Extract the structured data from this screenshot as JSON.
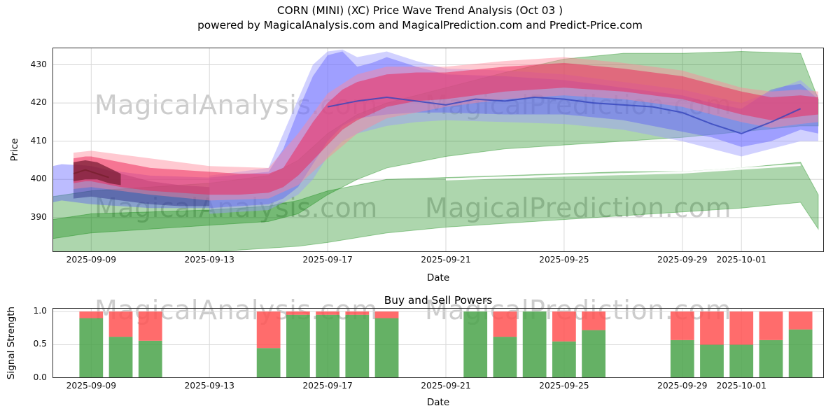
{
  "title": {
    "line1": "CORN (MINI) (XC) Price Wave Trend Analysis (Oct 03 )",
    "line2": "powered by MagicalAnalysis.com and MagicalPrediction.com and Predict-Price.com"
  },
  "watermarks": {
    "left": "MagicalAnalysis.com",
    "right": "MagicalPrediction.com"
  },
  "colors": {
    "grid": "#d8d8d8",
    "spine": "#2f2f2f",
    "band_green": "#008000",
    "band_blue_light": "#9999ff",
    "band_blue": "#5050ff",
    "band_navy": "#2a2a88",
    "band_pink": "#ff8899",
    "band_red": "#ee2255",
    "band_maroon": "#7a1f35",
    "bar_buy": "#4aa34a",
    "bar_sell": "#ff5252",
    "watermark": "#a3a3a3"
  },
  "chart_data": [
    {
      "type": "area",
      "name": "price-wave-trend",
      "ylabel": "Price",
      "xlabel": "Date",
      "x_epoch_day0": "2025-09-08",
      "xlim_days": [
        -0.31,
        25.79
      ],
      "ylim": [
        381,
        434.5
      ],
      "yticks": [
        {
          "v": 390,
          "label": "390"
        },
        {
          "v": 400,
          "label": "400"
        },
        {
          "v": 410,
          "label": "410"
        },
        {
          "v": 420,
          "label": "420"
        },
        {
          "v": 430,
          "label": "430"
        }
      ],
      "xticks": [
        {
          "day": 1,
          "label": "2025-09-09"
        },
        {
          "day": 5,
          "label": "2025-09-13"
        },
        {
          "day": 9,
          "label": "2025-09-17"
        },
        {
          "day": 13,
          "label": "2025-09-21"
        },
        {
          "day": 17,
          "label": "2025-09-25"
        },
        {
          "day": 21,
          "label": "2025-09-29"
        },
        {
          "day": 23,
          "label": "2025-10-01"
        }
      ],
      "bands": [
        {
          "name": "green-cone-lower",
          "color": "#008000",
          "opacity": 0.32,
          "stroke": true,
          "x": [
            -0.3,
            1,
            3,
            5,
            7,
            8,
            9,
            11,
            13,
            15,
            17,
            19,
            21,
            23,
            25,
            25.6
          ],
          "lower": [
            377,
            378,
            380,
            381,
            382,
            382.5,
            383.5,
            386,
            387.5,
            388.5,
            389.5,
            390.5,
            391.5,
            392.5,
            394,
            387
          ],
          "upper": [
            389.5,
            391,
            391.5,
            392,
            393,
            394.5,
            397,
            400,
            400.5,
            401,
            401.5,
            402,
            402,
            403,
            404.5,
            396
          ]
        },
        {
          "name": "green-cone-upper",
          "color": "#008000",
          "opacity": 0.32,
          "stroke": true,
          "x": [
            -0.3,
            1,
            3,
            5,
            7,
            8,
            9,
            10,
            11,
            13,
            15,
            17,
            19,
            21,
            23,
            25,
            25.6
          ],
          "lower": [
            384.5,
            386,
            387,
            388,
            389,
            391,
            396,
            400,
            403,
            406,
            408,
            409,
            410,
            411,
            412.5,
            414,
            414
          ],
          "upper": [
            395.5,
            397,
            398,
            399,
            401,
            405,
            412,
            417,
            420,
            424,
            428,
            431.5,
            433,
            433,
            433.5,
            433,
            421
          ]
        },
        {
          "name": "blue-outer",
          "color": "#9999ff",
          "opacity": 0.45,
          "stroke": false,
          "x": [
            5,
            7,
            8,
            8.5,
            9,
            9.5,
            10,
            11,
            12,
            13,
            15,
            17,
            19,
            21,
            23,
            25,
            25.6
          ],
          "lower": [
            391,
            392,
            396,
            400,
            406,
            410,
            412,
            414,
            415,
            415.5,
            415,
            414.5,
            413,
            410,
            406,
            410,
            410
          ],
          "upper": [
            401,
            403,
            421,
            430,
            433.5,
            434,
            432,
            433.5,
            431,
            429,
            428.5,
            427.5,
            425.5,
            423.5,
            420,
            426,
            422
          ]
        },
        {
          "name": "blue-inner",
          "color": "#5050ff",
          "opacity": 0.38,
          "stroke": false,
          "x": [
            -0.3,
            0,
            1,
            2,
            3,
            5,
            7,
            7.5,
            8,
            8.5,
            9,
            9.5,
            10,
            10.5,
            11,
            12,
            13,
            15,
            17,
            19,
            21,
            22,
            23,
            24,
            24.5,
            25,
            25.6
          ],
          "lower": [
            394,
            394.5,
            393.5,
            393,
            392.5,
            392.5,
            393.5,
            395,
            398,
            404,
            410,
            414,
            416,
            416.5,
            417,
            417.5,
            417.5,
            417,
            417,
            415.5,
            412.5,
            411,
            408.5,
            410,
            411.5,
            413,
            412
          ],
          "upper": [
            403.5,
            404,
            403.5,
            402,
            401,
            400.5,
            402,
            408,
            418,
            427,
            432.5,
            433.5,
            429.5,
            430.5,
            432,
            429.5,
            427.5,
            427,
            426,
            424,
            422,
            420,
            418.5,
            423.5,
            424.5,
            425,
            421
          ]
        },
        {
          "name": "navy-start",
          "color": "#2a2a88",
          "opacity": 0.45,
          "stroke": false,
          "x": [
            0.4,
            1,
            2,
            3,
            4,
            5
          ],
          "lower": [
            395,
            395.5,
            394.5,
            393.5,
            393,
            393
          ],
          "upper": [
            404,
            403.5,
            401.5,
            399.5,
            398.5,
            398
          ]
        },
        {
          "name": "pink-outer",
          "color": "#ff8899",
          "opacity": 0.45,
          "stroke": false,
          "x": [
            0.4,
            1,
            3,
            5,
            7,
            8,
            9,
            10,
            11,
            13,
            15,
            17,
            19,
            21,
            23,
            24,
            25,
            25.6
          ],
          "lower": [
            397.5,
            398,
            396,
            394.5,
            395,
            398.5,
            405.5,
            412,
            416,
            419,
            421,
            422,
            421,
            419,
            415,
            413.5,
            414.5,
            415
          ],
          "upper": [
            407,
            407.5,
            405.5,
            403.5,
            403,
            412,
            422.5,
            427.5,
            429.5,
            429.5,
            431,
            432,
            430.5,
            428.5,
            424,
            423,
            423.5,
            423
          ]
        },
        {
          "name": "red-inner",
          "color": "#ee2255",
          "opacity": 0.5,
          "stroke": false,
          "x": [
            0.4,
            0.8,
            1,
            2,
            3,
            5,
            6,
            7,
            7.5,
            8,
            8.5,
            9,
            9.5,
            10,
            11,
            12,
            13,
            15,
            17,
            19,
            21,
            23,
            24,
            25,
            25.6
          ],
          "lower": [
            399,
            399.5,
            399.5,
            398,
            397,
            396,
            396,
            396.5,
            398,
            401,
            405,
            409,
            413,
            415.5,
            419,
            420.5,
            421,
            423,
            424,
            423,
            421,
            417,
            415.5,
            416.5,
            417
          ],
          "upper": [
            405.5,
            406,
            406,
            404.5,
            403,
            402,
            401.5,
            401.5,
            403,
            409,
            415,
            420,
            423.5,
            425.5,
            427.5,
            428,
            428,
            429.5,
            430.5,
            429,
            427,
            423,
            421.5,
            422,
            421.5
          ]
        },
        {
          "name": "maroon-start",
          "color": "#7a1f35",
          "opacity": 0.75,
          "stroke": false,
          "x": [
            0.4,
            0.8,
            1.2,
            1.6,
            2
          ],
          "lower": [
            399.5,
            400,
            400,
            399,
            398.5
          ],
          "upper": [
            404.5,
            405,
            404.5,
            403,
            401.5
          ]
        }
      ],
      "lines": [
        {
          "name": "white-divider",
          "color": "#ffffff",
          "opacity": 0.95,
          "width": 3,
          "x": [
            13,
            17,
            21,
            25
          ],
          "y": [
            400,
            401,
            401.8,
            403.8
          ]
        },
        {
          "name": "dark-blue-trend",
          "color": "#3344bb",
          "opacity": 0.8,
          "width": 2,
          "x": [
            9,
            10,
            11,
            12,
            13,
            14,
            15,
            16,
            17,
            18,
            19,
            20,
            21,
            22,
            23,
            24,
            25
          ],
          "y": [
            419,
            420.5,
            421.5,
            420.5,
            419.5,
            421,
            420.5,
            421.5,
            421,
            420,
            419.5,
            419,
            417.5,
            414.5,
            412,
            415,
            418.5
          ]
        },
        {
          "name": "maroon-trace",
          "color": "#7a2030",
          "opacity": 0.9,
          "width": 2,
          "x": [
            0.4,
            0.8,
            1.2,
            1.6
          ],
          "y": [
            401.5,
            402.5,
            401.5,
            400.5
          ]
        }
      ]
    },
    {
      "type": "bar",
      "name": "buy-sell-powers",
      "title": "Buy and Sell Powers",
      "ylabel": "Signal Strength",
      "xlabel": "Date",
      "xlim_days": [
        -0.31,
        25.79
      ],
      "ylim": [
        0,
        1.0526
      ],
      "bar_width_days": 0.8,
      "yticks": [
        {
          "v": 0.0,
          "label": "0.0"
        },
        {
          "v": 0.5,
          "label": "0.5"
        },
        {
          "v": 1.0,
          "label": "1.0"
        }
      ],
      "xticks": [
        {
          "day": 1,
          "label": "2025-09-09"
        },
        {
          "day": 5,
          "label": "2025-09-13"
        },
        {
          "day": 9,
          "label": "2025-09-17"
        },
        {
          "day": 13,
          "label": "2025-09-21"
        },
        {
          "day": 17,
          "label": "2025-09-25"
        },
        {
          "day": 21,
          "label": "2025-09-29"
        },
        {
          "day": 23,
          "label": "2025-10-01"
        }
      ],
      "stacked_series": [
        {
          "name": "Buy",
          "color": "#4aa34a"
        },
        {
          "name": "Sell",
          "color": "#ff5252"
        }
      ],
      "bars": [
        {
          "date": "2025-09-09",
          "day": 1,
          "buy": 0.9,
          "sell": 0.1
        },
        {
          "date": "2025-09-10",
          "day": 2,
          "buy": 0.62,
          "sell": 0.38
        },
        {
          "date": "2025-09-11",
          "day": 3,
          "buy": 0.56,
          "sell": 0.44
        },
        {
          "date": "2025-09-15",
          "day": 7,
          "buy": 0.45,
          "sell": 0.55
        },
        {
          "date": "2025-09-16",
          "day": 8,
          "buy": 0.95,
          "sell": 0.05
        },
        {
          "date": "2025-09-17",
          "day": 9,
          "buy": 0.95,
          "sell": 0.05
        },
        {
          "date": "2025-09-18",
          "day": 10,
          "buy": 0.95,
          "sell": 0.05
        },
        {
          "date": "2025-09-19",
          "day": 11,
          "buy": 0.9,
          "sell": 0.1
        },
        {
          "date": "2025-09-22",
          "day": 14,
          "buy": 1.0,
          "sell": 0.0
        },
        {
          "date": "2025-09-23",
          "day": 15,
          "buy": 0.62,
          "sell": 0.38
        },
        {
          "date": "2025-09-24",
          "day": 16,
          "buy": 1.0,
          "sell": 0.0
        },
        {
          "date": "2025-09-25",
          "day": 17,
          "buy": 0.55,
          "sell": 0.45
        },
        {
          "date": "2025-09-26",
          "day": 18,
          "buy": 0.72,
          "sell": 0.28
        },
        {
          "date": "2025-09-29",
          "day": 21,
          "buy": 0.57,
          "sell": 0.43
        },
        {
          "date": "2025-09-30",
          "day": 22,
          "buy": 0.5,
          "sell": 0.5
        },
        {
          "date": "2025-10-01",
          "day": 23,
          "buy": 0.5,
          "sell": 0.5
        },
        {
          "date": "2025-10-02",
          "day": 24,
          "buy": 0.57,
          "sell": 0.43
        },
        {
          "date": "2025-10-03",
          "day": 25,
          "buy": 0.73,
          "sell": 0.27
        }
      ]
    }
  ]
}
